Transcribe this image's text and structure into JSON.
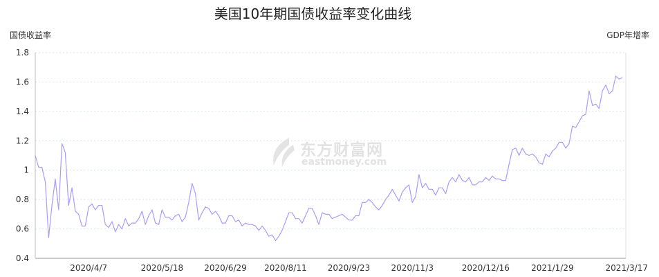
{
  "chart_data": {
    "type": "line",
    "title": "美国10年期国债收益率变化曲线",
    "ylabel": "国债收益率",
    "y2label": "GDP年增率",
    "ylim": [
      0.4,
      1.8
    ],
    "yticks": [
      "0.4",
      "0.6",
      "0.8",
      "1",
      "1.2",
      "1.4",
      "1.6",
      "1.8"
    ],
    "grid": true,
    "line_color": "#a99cf3",
    "xticks": [
      {
        "label": "2020/4/7",
        "index": 16
      },
      {
        "label": "2020/5/18",
        "index": 38
      },
      {
        "label": "2020/6/29",
        "index": 57
      },
      {
        "label": "2020/8/11",
        "index": 75
      },
      {
        "label": "2020/9/23",
        "index": 94
      },
      {
        "label": "2020/11/3",
        "index": 113
      },
      {
        "label": "2020/12/16",
        "index": 135
      },
      {
        "label": "2021/1/29",
        "index": 155
      },
      {
        "label": "2021/3/17",
        "index": 177
      }
    ],
    "series": [
      {
        "values": [
          1.1,
          1.02,
          1.02,
          0.92,
          0.54,
          0.76,
          0.94,
          0.73,
          1.18,
          1.12,
          0.76,
          0.88,
          0.72,
          0.7,
          0.62,
          0.62,
          0.75,
          0.77,
          0.73,
          0.76,
          0.76,
          0.63,
          0.61,
          0.65,
          0.58,
          0.63,
          0.6,
          0.67,
          0.62,
          0.64,
          0.64,
          0.67,
          0.72,
          0.63,
          0.69,
          0.73,
          0.64,
          0.63,
          0.73,
          0.68,
          0.68,
          0.66,
          0.69,
          0.7,
          0.65,
          0.68,
          0.78,
          0.91,
          0.84,
          0.66,
          0.71,
          0.75,
          0.74,
          0.7,
          0.72,
          0.69,
          0.64,
          0.64,
          0.69,
          0.69,
          0.65,
          0.66,
          0.62,
          0.64,
          0.63,
          0.63,
          0.62,
          0.59,
          0.62,
          0.59,
          0.55,
          0.56,
          0.52,
          0.55,
          0.59,
          0.65,
          0.71,
          0.71,
          0.67,
          0.67,
          0.64,
          0.69,
          0.74,
          0.74,
          0.69,
          0.63,
          0.71,
          0.7,
          0.7,
          0.67,
          0.68,
          0.69,
          0.7,
          0.68,
          0.66,
          0.66,
          0.69,
          0.69,
          0.78,
          0.78,
          0.8,
          0.78,
          0.75,
          0.73,
          0.76,
          0.8,
          0.83,
          0.87,
          0.83,
          0.79,
          0.85,
          0.88,
          0.9,
          0.78,
          0.82,
          0.97,
          0.88,
          0.91,
          0.87,
          0.87,
          0.83,
          0.88,
          0.88,
          0.84,
          0.92,
          0.95,
          0.92,
          0.97,
          0.93,
          0.92,
          0.95,
          0.9,
          0.9,
          0.92,
          0.92,
          0.95,
          0.93,
          0.96,
          0.94,
          0.94,
          0.93,
          0.93,
          1.04,
          1.14,
          1.15,
          1.1,
          1.15,
          1.11,
          1.1,
          1.11,
          1.09,
          1.05,
          1.04,
          1.11,
          1.09,
          1.13,
          1.15,
          1.19,
          1.19,
          1.15,
          1.18,
          1.3,
          1.29,
          1.33,
          1.37,
          1.38,
          1.54,
          1.44,
          1.45,
          1.42,
          1.54,
          1.58,
          1.52,
          1.54,
          1.64,
          1.62,
          1.63
        ]
      }
    ]
  },
  "watermark": {
    "cn": "东方财富网",
    "en": "eastmoney.com"
  }
}
